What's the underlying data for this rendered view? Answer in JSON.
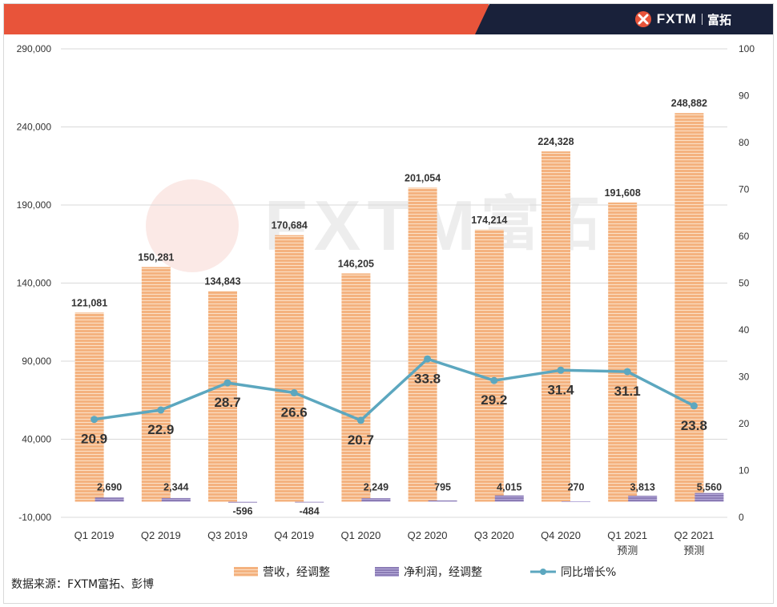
{
  "header": {
    "logo_text": "FXTM",
    "logo_cn": "富拓"
  },
  "watermark": {
    "text": "FXTM",
    "cn": "富拓"
  },
  "source_note": "数据来源：FXTM富拓、彭博",
  "colors": {
    "revenue": "#f4b27f",
    "revenue_line": "#fbe1c8",
    "profit": "#8a7bb5",
    "growth": "#5ca7bf",
    "banner_red": "#e8543a",
    "banner_dark": "#19213a"
  },
  "chart_data": {
    "type": "bar+line",
    "categories": [
      {
        "line1": "Q1 2019",
        "line2": ""
      },
      {
        "line1": "Q2 2019",
        "line2": ""
      },
      {
        "line1": "Q3 2019",
        "line2": ""
      },
      {
        "line1": "Q4 2019",
        "line2": ""
      },
      {
        "line1": "Q1 2020",
        "line2": ""
      },
      {
        "line1": "Q2 2020",
        "line2": ""
      },
      {
        "line1": "Q3 2020",
        "line2": ""
      },
      {
        "line1": "Q4 2020",
        "line2": ""
      },
      {
        "line1": "Q1 2021",
        "line2": "预测"
      },
      {
        "line1": "Q2 2021",
        "line2": "预测"
      }
    ],
    "series": [
      {
        "name": "营收，经调整",
        "axis": "left",
        "kind": "bar",
        "values": [
          121081,
          150281,
          134843,
          170684,
          146205,
          201054,
          174214,
          224328,
          191608,
          248882
        ],
        "labels": [
          "121,081",
          "150,281",
          "134,843",
          "170,684",
          "146,205",
          "201,054",
          "174,214",
          "224,328",
          "191,608",
          "248,882"
        ]
      },
      {
        "name": "净利润，经调整",
        "axis": "left",
        "kind": "bar",
        "values": [
          2690,
          2344,
          -596,
          -484,
          2249,
          795,
          4015,
          270,
          3813,
          5560
        ],
        "labels": [
          "2,690",
          "2,344",
          "-596",
          "-484",
          "2,249",
          "795",
          "4,015",
          "270",
          "3,813",
          "5,560"
        ]
      },
      {
        "name": "同比增长%",
        "axis": "right",
        "kind": "line",
        "values": [
          20.9,
          22.9,
          28.7,
          26.6,
          20.7,
          33.8,
          29.2,
          31.4,
          31.1,
          23.8
        ],
        "labels": [
          "20.9",
          "22.9",
          "28.7",
          "26.6",
          "20.7",
          "33.8",
          "29.2",
          "31.4",
          "31.1",
          "23.8"
        ]
      }
    ],
    "left_axis": {
      "min": -10000,
      "max": 290000,
      "ticks": [
        -10000,
        40000,
        90000,
        140000,
        190000,
        240000,
        290000
      ],
      "tick_labels": [
        "-10,000",
        "40,000",
        "90,000",
        "140,000",
        "190,000",
        "240,000",
        "290,000"
      ]
    },
    "right_axis": {
      "min": 0,
      "max": 100,
      "ticks": [
        0,
        10,
        20,
        30,
        40,
        50,
        60,
        70,
        80,
        90,
        100
      ],
      "tick_labels": [
        "0",
        "10",
        "20",
        "30",
        "40",
        "50",
        "60",
        "70",
        "80",
        "90",
        "100"
      ]
    },
    "grid": true,
    "legend_position": "bottom"
  }
}
